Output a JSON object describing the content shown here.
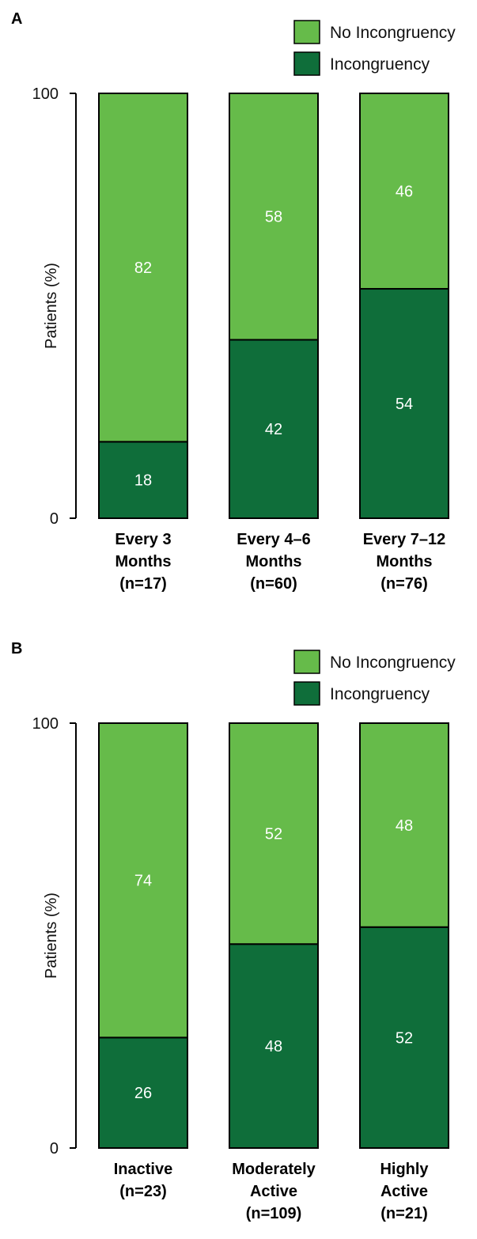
{
  "colors": {
    "no_incongruency": "#66BB4A",
    "incongruency": "#0F6E3A"
  },
  "chart_data": [
    {
      "type": "bar",
      "stacked": true,
      "panel": "A",
      "ylabel": "Patients (%)",
      "ylim": [
        0,
        100
      ],
      "yticks": [
        "0",
        "100"
      ],
      "legend_position": "top-right",
      "categories": [
        [
          "Every 3",
          "Months",
          "(n=17)"
        ],
        [
          "Every 4–6",
          "Months",
          "(n=60)"
        ],
        [
          "Every 7–12",
          "Months",
          "(n=76)"
        ]
      ],
      "series": [
        {
          "name": "Incongruency",
          "color": "#0F6E3A",
          "values": [
            18,
            42,
            54
          ]
        },
        {
          "name": "No Incongruency",
          "color": "#66BB4A",
          "values": [
            82,
            58,
            46
          ]
        }
      ]
    },
    {
      "type": "bar",
      "stacked": true,
      "panel": "B",
      "ylabel": "Patients (%)",
      "ylim": [
        0,
        100
      ],
      "yticks": [
        "0",
        "100"
      ],
      "legend_position": "top-right",
      "categories": [
        [
          "Inactive",
          "(n=23)"
        ],
        [
          "Moderately",
          "Active",
          "(n=109)"
        ],
        [
          "Highly",
          "Active",
          "(n=21)"
        ]
      ],
      "series": [
        {
          "name": "Incongruency",
          "color": "#0F6E3A",
          "values": [
            26,
            48,
            52
          ]
        },
        {
          "name": "No Incongruency",
          "color": "#66BB4A",
          "values": [
            74,
            52,
            48
          ]
        }
      ]
    }
  ]
}
